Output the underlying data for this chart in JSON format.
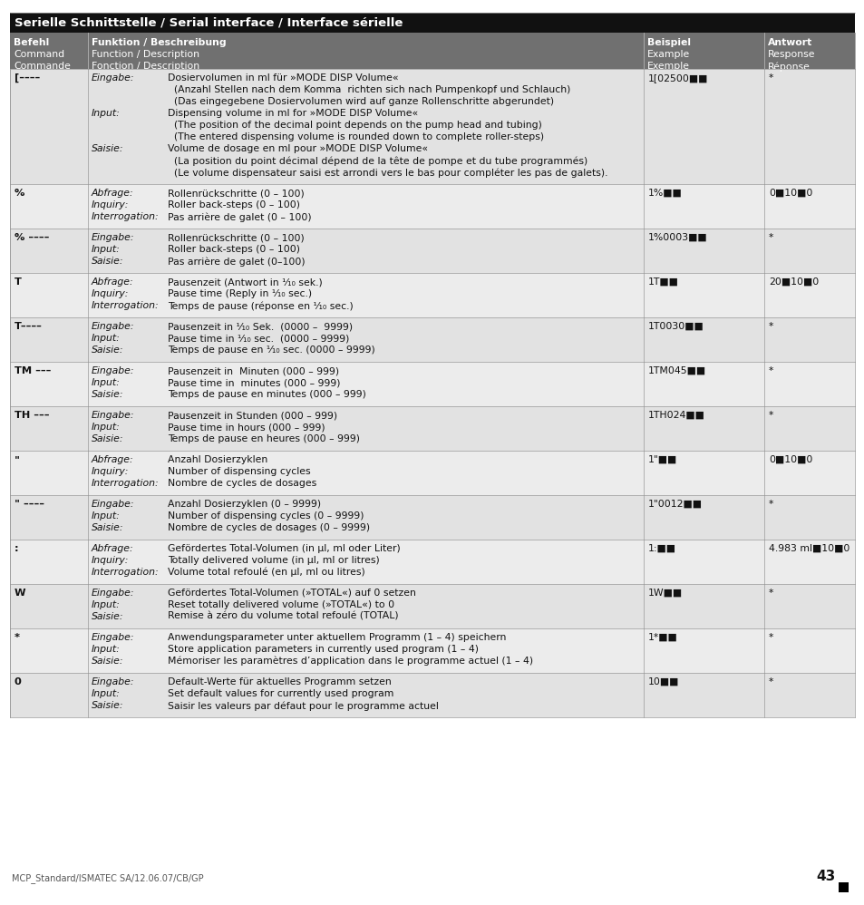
{
  "title": "Serielle Schnittstelle / Serial interface / Interface sérielle",
  "header_bg": "#111111",
  "header_text_color": "#ffffff",
  "subheader_bg": "#707070",
  "subheader_text_color": "#ffffff",
  "row_bg_light": "#e2e2e2",
  "row_bg_mid": "#ececec",
  "text_color": "#111111",
  "border_color": "#999999",
  "col_headers": [
    [
      "Befehl",
      "Command",
      "Commande"
    ],
    [
      "Funktion / Beschreibung",
      "Function / Description",
      "Fonction / Description"
    ],
    [
      "Beispiel",
      "Example",
      "Exemple"
    ],
    [
      "Antwort",
      "Response",
      "Réponse"
    ]
  ],
  "rows": [
    {
      "cmd": "[––––",
      "entries": [
        [
          "Eingabe:",
          "Dosiervolumen in ml für »MODE DISP Volume«|  (Anzahl Stellen nach dem Komma  richten sich nach Pumpenkopf und Schlauch)|  (Das eingegebene Dosiervolumen wird auf ganze Rollenschritte abgerundet)"
        ],
        [
          "Input:",
          "Dispensing volume in ml for »MODE DISP Volume«|  (The position of the decimal point depends on the pump head and tubing)|  (The entered dispensing volume is rounded down to complete roller-steps)"
        ],
        [
          "Saisie:",
          "Volume de dosage en ml pour »MODE DISP Volume«|  (La position du point décimal dépend de la tête de pompe et du tube programmés)|  (Le volume dispensateur saisi est arrondi vers le bas pour compléter les pas de galets)."
        ]
      ],
      "example": "1[02500■■",
      "response": "*",
      "shade": 0
    },
    {
      "cmd": "%",
      "entries": [
        [
          "Abfrage:",
          "Rollenrückschritte (0 – 100)"
        ],
        [
          "Inquiry:",
          "Roller back-steps (0 – 100)"
        ],
        [
          "Interrogation:",
          "Pas arrière de galet (0 – 100)"
        ]
      ],
      "example": "1%■■",
      "response": "0■10■0",
      "shade": 1
    },
    {
      "cmd": "% ––––",
      "entries": [
        [
          "Eingabe:",
          "Rollenrückschritte (0 – 100)"
        ],
        [
          "Input:",
          "Roller back-steps (0 – 100)"
        ],
        [
          "Saisie:",
          "Pas arrière de galet (0–100)"
        ]
      ],
      "example": "1%0003■■",
      "response": "*",
      "shade": 0
    },
    {
      "cmd": "T",
      "entries": [
        [
          "Abfrage:",
          "Pausenzeit (Antwort in ¹⁄₁₀ sek.)"
        ],
        [
          "Inquiry:",
          "Pause time (Reply in ¹⁄₁₀ sec.)"
        ],
        [
          "Interrogation:",
          "Temps de pause (réponse en ¹⁄₁₀ sec.)"
        ]
      ],
      "example": "1T■■",
      "response": "20■10■0",
      "shade": 1
    },
    {
      "cmd": "T––––",
      "entries": [
        [
          "Eingabe:",
          "Pausenzeit in ¹⁄₁₀ Sek.  (0000 –  9999)"
        ],
        [
          "Input:",
          "Pause time in ¹⁄₁₀ sec.  (0000 – 9999)"
        ],
        [
          "Saisie:",
          "Temps de pause en ¹⁄₁₀ sec. (0000 – 9999)"
        ]
      ],
      "example": "1T0030■■",
      "response": "*",
      "shade": 0
    },
    {
      "cmd": "TM –––",
      "entries": [
        [
          "Eingabe:",
          "Pausenzeit in  Minuten (000 – 999)"
        ],
        [
          "Input:",
          "Pause time in  minutes (000 – 999)"
        ],
        [
          "Saisie:",
          "Temps de pause en minutes (000 – 999)"
        ]
      ],
      "example": "1TM045■■",
      "response": "*",
      "shade": 1
    },
    {
      "cmd": "TH –––",
      "entries": [
        [
          "Eingabe:",
          "Pausenzeit in Stunden (000 – 999)"
        ],
        [
          "Input:",
          "Pause time in hours (000 – 999)"
        ],
        [
          "Saisie:",
          "Temps de pause en heures (000 – 999)"
        ]
      ],
      "example": "1TH024■■",
      "response": "*",
      "shade": 0
    },
    {
      "cmd": "\"",
      "entries": [
        [
          "Abfrage:",
          "Anzahl Dosierzyklen"
        ],
        [
          "Inquiry:",
          "Number of dispensing cycles"
        ],
        [
          "Interrogation:",
          "Nombre de cycles de dosages"
        ]
      ],
      "example": "1\"■■",
      "response": "0■10■0",
      "shade": 1
    },
    {
      "cmd": "\" ––––",
      "entries": [
        [
          "Eingabe:",
          "Anzahl Dosierzyklen (0 – 9999)"
        ],
        [
          "Input:",
          "Number of dispensing cycles (0 – 9999)"
        ],
        [
          "Saisie:",
          "Nombre de cycles de dosages (0 – 9999)"
        ]
      ],
      "example": "1\"0012■■",
      "response": "*",
      "shade": 0
    },
    {
      "cmd": ":",
      "entries": [
        [
          "Abfrage:",
          "Gefördertes Total-Volumen (in µl, ml oder Liter)"
        ],
        [
          "Inquiry:",
          "Totally delivered volume (in µl, ml or litres)"
        ],
        [
          "Interrogation:",
          "Volume total refoulé (en µl, ml ou litres)"
        ]
      ],
      "example": "1:■■",
      "response": "4.983 ml■10■0",
      "shade": 1
    },
    {
      "cmd": "W",
      "entries": [
        [
          "Eingabe:",
          "Gefördertes Total-Volumen (»TOTAL«) auf 0 setzen"
        ],
        [
          "Input:",
          "Reset totally delivered volume (»TOTAL«) to 0"
        ],
        [
          "Saisie:",
          "Remise à zéro du volume total refoulé (TOTAL)"
        ]
      ],
      "example": "1W■■",
      "response": "*",
      "shade": 0
    },
    {
      "cmd": "*",
      "entries": [
        [
          "Eingabe:",
          "Anwendungsparameter unter aktuellem Programm (1 – 4) speichern"
        ],
        [
          "Input:",
          "Store application parameters in currently used program (1 – 4)"
        ],
        [
          "Saisie:",
          "Mémoriser les paramètres d’application dans le programme actuel (1 – 4)"
        ]
      ],
      "example": "1*■■",
      "response": "*",
      "shade": 1
    },
    {
      "cmd": "0",
      "entries": [
        [
          "Eingabe:",
          "Default-Werte für aktuelles Programm setzen"
        ],
        [
          "Input:",
          "Set default values for currently used program"
        ],
        [
          "Saisie:",
          "Saisir les valeurs par défaut pour le programme actuel"
        ]
      ],
      "example": "10■■",
      "response": "*",
      "shade": 0
    }
  ],
  "footer_left": "MCP_Standard/ISMATEC SA/12.06.07/CB/GP",
  "page_number": "43"
}
